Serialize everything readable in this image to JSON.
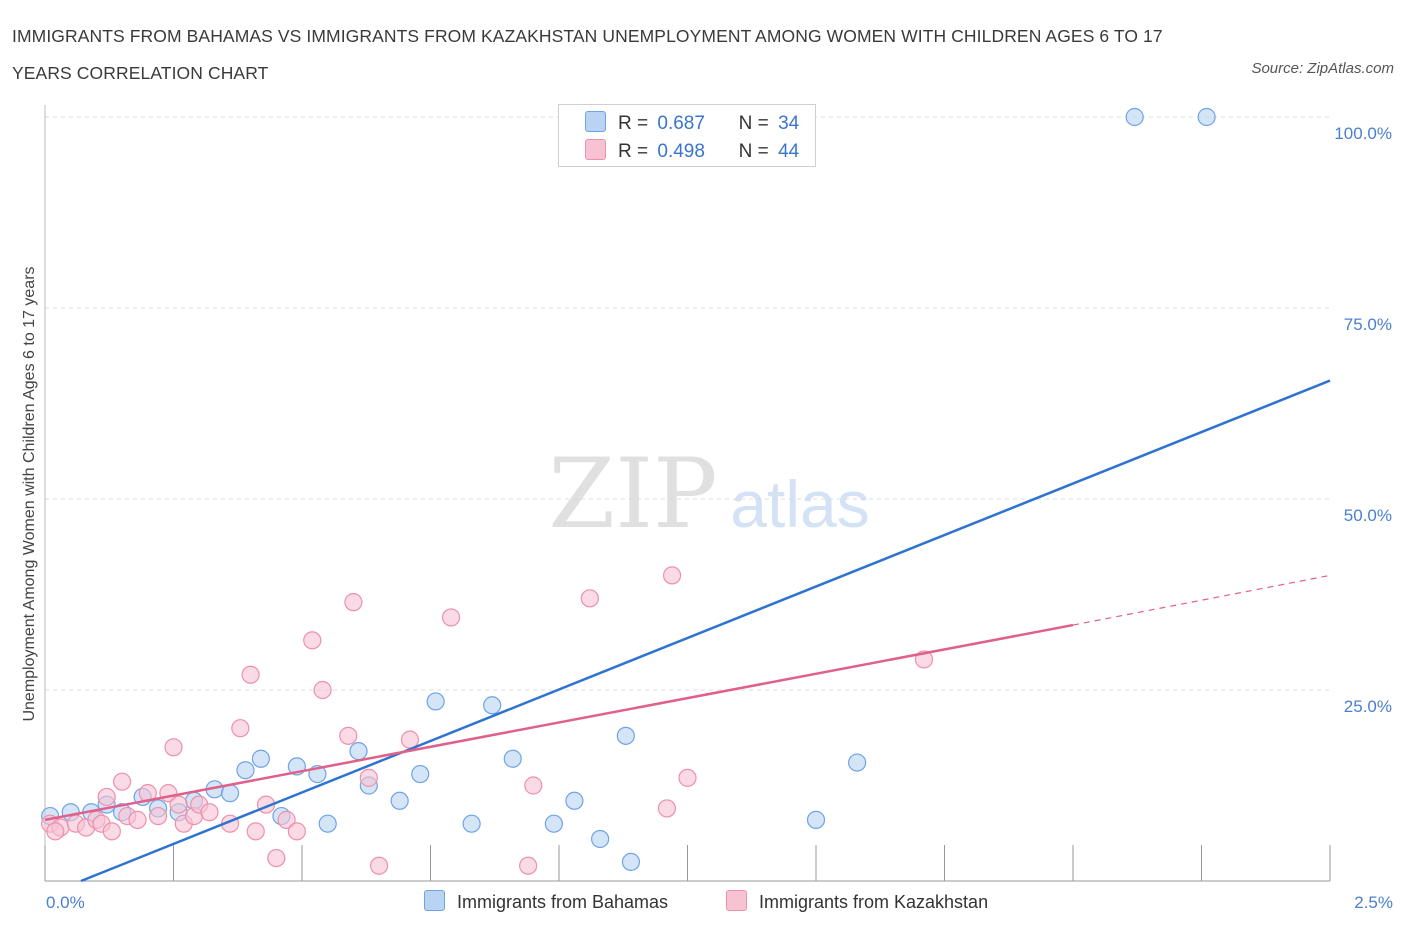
{
  "title": "IMMIGRANTS FROM BAHAMAS VS IMMIGRANTS FROM KAZAKHSTAN UNEMPLOYMENT AMONG WOMEN WITH CHILDREN AGES 6 TO 17 YEARS CORRELATION CHART",
  "source": "Source: ZipAtlas.com",
  "watermark": {
    "zip": "ZIP",
    "atlas": "atlas"
  },
  "legend": {
    "rows": [
      {
        "r_label": "R =",
        "r_value": "0.687",
        "n_label": "N =",
        "n_value": "34",
        "color": "#a8c8f0"
      },
      {
        "r_label": "R =",
        "r_value": "0.498",
        "n_label": "N =",
        "n_value": "44",
        "color": "#f5b8cb"
      }
    ]
  },
  "chart_data": {
    "type": "scatter",
    "title": "IMMIGRANTS FROM BAHAMAS VS IMMIGRANTS FROM KAZAKHSTAN UNEMPLOYMENT AMONG WOMEN WITH CHILDREN AGES 6 TO 17 YEARS CORRELATION CHART",
    "xlabel": "",
    "ylabel": "Unemployment Among Women with Children Ages 6 to 17 years",
    "xlim": [
      0,
      2.5
    ],
    "ylim": [
      0,
      100
    ],
    "x_tick_labels": [
      "0.0%",
      "2.5%"
    ],
    "y_ticks": [
      25,
      50,
      75,
      100
    ],
    "y_tick_labels": [
      "25.0%",
      "50.0%",
      "75.0%",
      "100.0%"
    ],
    "grid": true,
    "series": [
      {
        "name": "Immigrants from Bahamas",
        "color": "#6fa3e6",
        "fill": "#b9d3f3",
        "trend_color": "#2f73d0",
        "trend": {
          "x": [
            0.07,
            2.5
          ],
          "y": [
            0,
            65.5
          ]
        },
        "points": [
          [
            0.01,
            8.5
          ],
          [
            0.05,
            9.0
          ],
          [
            0.09,
            9.0
          ],
          [
            0.12,
            10.0
          ],
          [
            0.15,
            9.0
          ],
          [
            0.19,
            11.0
          ],
          [
            0.22,
            9.5
          ],
          [
            0.26,
            9.0
          ],
          [
            0.29,
            10.5
          ],
          [
            0.33,
            12.0
          ],
          [
            0.36,
            11.5
          ],
          [
            0.39,
            14.5
          ],
          [
            0.42,
            16.0
          ],
          [
            0.46,
            8.5
          ],
          [
            0.49,
            15.0
          ],
          [
            0.53,
            14.0
          ],
          [
            0.55,
            7.5
          ],
          [
            0.61,
            17.0
          ],
          [
            0.63,
            12.5
          ],
          [
            0.69,
            10.5
          ],
          [
            0.73,
            14.0
          ],
          [
            0.76,
            23.5
          ],
          [
            0.83,
            7.5
          ],
          [
            0.87,
            23.0
          ],
          [
            0.91,
            16.0
          ],
          [
            0.99,
            7.5
          ],
          [
            1.03,
            10.5
          ],
          [
            1.08,
            5.5
          ],
          [
            1.13,
            19.0
          ],
          [
            1.14,
            2.5
          ],
          [
            1.5,
            8.0
          ],
          [
            1.58,
            15.5
          ],
          [
            2.12,
            100.0
          ],
          [
            2.26,
            100.0
          ]
        ]
      },
      {
        "name": "Immigrants from Kazakhstan",
        "color": "#ee8fab",
        "fill": "#f7c3d3",
        "trend_color": "#e0608a",
        "trend": {
          "x": [
            0,
            2.0
          ],
          "y": [
            8.0,
            33.5
          ]
        },
        "trend_dashed": {
          "x": [
            2.0,
            2.5
          ],
          "y": [
            33.5,
            40.0
          ]
        },
        "points": [
          [
            0.01,
            7.5
          ],
          [
            0.03,
            7.0
          ],
          [
            0.06,
            7.5
          ],
          [
            0.08,
            7.0
          ],
          [
            0.1,
            8.0
          ],
          [
            0.11,
            7.5
          ],
          [
            0.12,
            11.0
          ],
          [
            0.13,
            6.5
          ],
          [
            0.15,
            13.0
          ],
          [
            0.16,
            8.5
          ],
          [
            0.18,
            8.0
          ],
          [
            0.2,
            11.5
          ],
          [
            0.22,
            8.5
          ],
          [
            0.24,
            11.5
          ],
          [
            0.26,
            10.0
          ],
          [
            0.25,
            17.5
          ],
          [
            0.27,
            7.5
          ],
          [
            0.29,
            8.5
          ],
          [
            0.3,
            10.0
          ],
          [
            0.32,
            9.0
          ],
          [
            0.36,
            7.5
          ],
          [
            0.38,
            20.0
          ],
          [
            0.4,
            27.0
          ],
          [
            0.41,
            6.5
          ],
          [
            0.43,
            10.0
          ],
          [
            0.45,
            3.0
          ],
          [
            0.47,
            8.0
          ],
          [
            0.49,
            6.5
          ],
          [
            0.52,
            31.5
          ],
          [
            0.54,
            25.0
          ],
          [
            0.59,
            19.0
          ],
          [
            0.6,
            36.5
          ],
          [
            0.63,
            13.5
          ],
          [
            0.65,
            2.0
          ],
          [
            0.71,
            18.5
          ],
          [
            0.79,
            34.5
          ],
          [
            0.94,
            2.0
          ],
          [
            0.95,
            12.5
          ],
          [
            1.06,
            37.0
          ],
          [
            1.21,
            9.5
          ],
          [
            1.22,
            40.0
          ],
          [
            1.25,
            13.5
          ],
          [
            1.71,
            29.0
          ],
          [
            0.02,
            6.5
          ]
        ]
      }
    ]
  },
  "bottom_legend": {
    "items": [
      {
        "label": "Immigrants from Bahamas",
        "color": "#b9d3f3",
        "border": "#6fa3e6"
      },
      {
        "label": "Immigrants from Kazakhstan",
        "color": "#f7c3d3",
        "border": "#ee8fab"
      }
    ]
  }
}
